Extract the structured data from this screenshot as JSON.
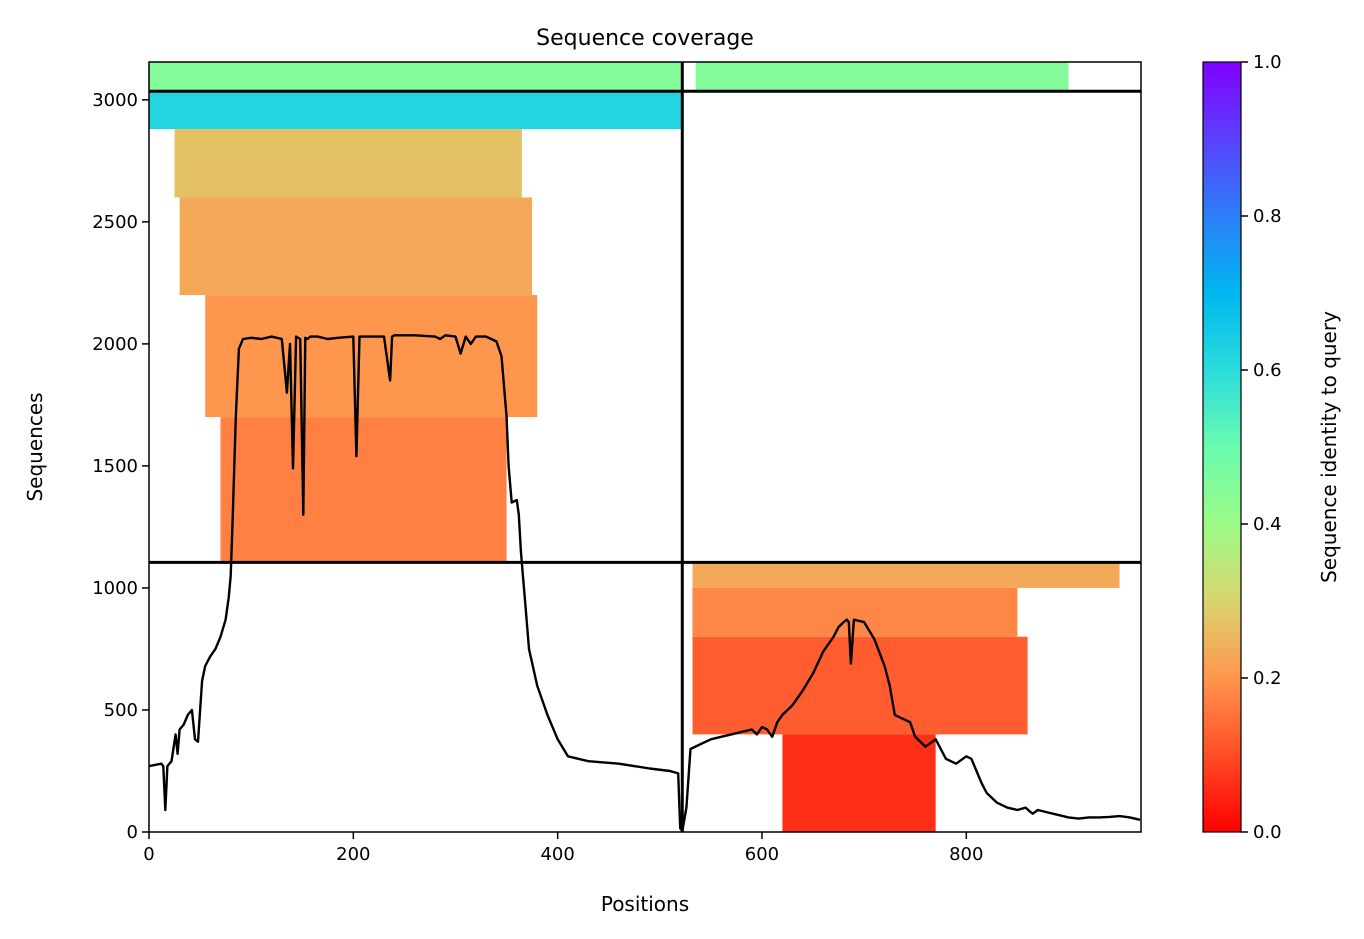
{
  "chart_data": {
    "type": "heatmap",
    "title": "Sequence coverage",
    "xlabel": "Positions",
    "ylabel": "Sequences",
    "xlim": [
      0,
      971
    ],
    "ylim": [
      0,
      3155
    ],
    "x_ticks": [
      "0",
      "200",
      "400",
      "600",
      "800"
    ],
    "x_tick_values": [
      0,
      200,
      400,
      600,
      800
    ],
    "y_ticks": [
      "0",
      "500",
      "1000",
      "1500",
      "2000",
      "2500",
      "3000"
    ],
    "y_tick_values": [
      0,
      500,
      1000,
      1500,
      2000,
      2500,
      3000
    ],
    "colormap": "rainbow_r",
    "colorbar": {
      "label": "Sequence identity to query",
      "range": [
        0,
        1
      ],
      "ticks": [
        "0.0",
        "0.2",
        "0.4",
        "0.6",
        "0.8",
        "1.0"
      ],
      "tick_values": [
        0,
        0.2,
        0.4,
        0.6,
        0.8,
        1.0
      ]
    },
    "chain_boundary_x": 522,
    "msa_block_boundaries_y": [
      1105,
      3035
    ],
    "coverage_line": {
      "color": "#000000",
      "x": [
        0,
        12,
        14,
        16,
        18,
        22,
        26,
        28,
        30,
        34,
        38,
        42,
        45,
        48,
        52,
        55,
        60,
        65,
        70,
        75,
        78,
        80,
        82,
        85,
        88,
        92,
        100,
        110,
        120,
        130,
        135,
        138,
        141,
        144,
        148,
        151,
        153,
        155,
        158,
        165,
        175,
        185,
        200,
        203,
        206,
        215,
        230,
        236,
        238,
        240,
        260,
        280,
        285,
        290,
        300,
        305,
        310,
        315,
        320,
        330,
        340,
        345,
        350,
        352,
        355,
        360,
        362,
        364,
        366,
        368,
        372,
        380,
        390,
        400,
        410,
        430,
        460,
        490,
        510,
        518,
        520,
        522,
        524,
        526,
        530,
        540,
        550,
        560,
        570,
        580,
        590,
        595,
        600,
        605,
        610,
        615,
        620,
        630,
        640,
        650,
        660,
        670,
        675,
        680,
        683,
        685,
        687,
        690,
        700,
        710,
        720,
        725,
        730,
        745,
        750,
        760,
        770,
        780,
        790,
        800,
        805,
        810,
        815,
        820,
        830,
        840,
        850,
        858,
        862,
        865,
        870,
        880,
        890,
        900,
        910,
        920,
        930,
        940,
        950,
        960,
        970
      ],
      "y": [
        270,
        280,
        270,
        90,
        270,
        290,
        400,
        320,
        420,
        440,
        480,
        500,
        380,
        370,
        620,
        680,
        720,
        750,
        800,
        870,
        960,
        1050,
        1300,
        1700,
        1980,
        2020,
        2025,
        2020,
        2030,
        2020,
        1800,
        2000,
        1490,
        2030,
        2020,
        1300,
        2025,
        2020,
        2030,
        2030,
        2020,
        2025,
        2030,
        1540,
        2030,
        2030,
        2030,
        1850,
        2030,
        2035,
        2035,
        2030,
        2020,
        2035,
        2030,
        1960,
        2030,
        2000,
        2030,
        2030,
        2010,
        1950,
        1700,
        1500,
        1350,
        1360,
        1300,
        1150,
        1050,
        950,
        750,
        600,
        480,
        380,
        310,
        290,
        280,
        260,
        250,
        240,
        15,
        5,
        50,
        100,
        340,
        360,
        380,
        390,
        400,
        410,
        420,
        400,
        430,
        420,
        390,
        450,
        480,
        520,
        580,
        650,
        740,
        800,
        840,
        860,
        870,
        860,
        690,
        870,
        860,
        790,
        680,
        600,
        480,
        450,
        390,
        350,
        380,
        300,
        280,
        310,
        300,
        250,
        200,
        160,
        120,
        100,
        90,
        100,
        85,
        75,
        90,
        80,
        70,
        60,
        55,
        60,
        60,
        62,
        65,
        60,
        50,
        35
      ]
    },
    "msa_bands": [
      {
        "y0": 3035,
        "y1": 3155,
        "x0": 0,
        "x1": 522,
        "identity": 0.45
      },
      {
        "y0": 3035,
        "y1": 3155,
        "x0": 535,
        "x1": 900,
        "identity": 0.45
      },
      {
        "y0": 2880,
        "y1": 3035,
        "x0": 0,
        "x1": 522,
        "identity": 0.62
      },
      {
        "y0": 2600,
        "y1": 2880,
        "x0": 25,
        "x1": 365,
        "identity": 0.27
      },
      {
        "y0": 2200,
        "y1": 2600,
        "x0": 30,
        "x1": 375,
        "identity": 0.23
      },
      {
        "y0": 1700,
        "y1": 2200,
        "x0": 55,
        "x1": 380,
        "identity": 0.2
      },
      {
        "y0": 1105,
        "y1": 1700,
        "x0": 70,
        "x1": 350,
        "identity": 0.17
      },
      {
        "y0": 1000,
        "y1": 1105,
        "x0": 532,
        "x1": 950,
        "identity": 0.23
      },
      {
        "y0": 800,
        "y1": 1000,
        "x0": 532,
        "x1": 850,
        "identity": 0.18
      },
      {
        "y0": 400,
        "y1": 800,
        "x0": 532,
        "x1": 860,
        "identity": 0.12
      },
      {
        "y0": 0,
        "y1": 400,
        "x0": 620,
        "x1": 770,
        "identity": 0.06
      }
    ]
  }
}
